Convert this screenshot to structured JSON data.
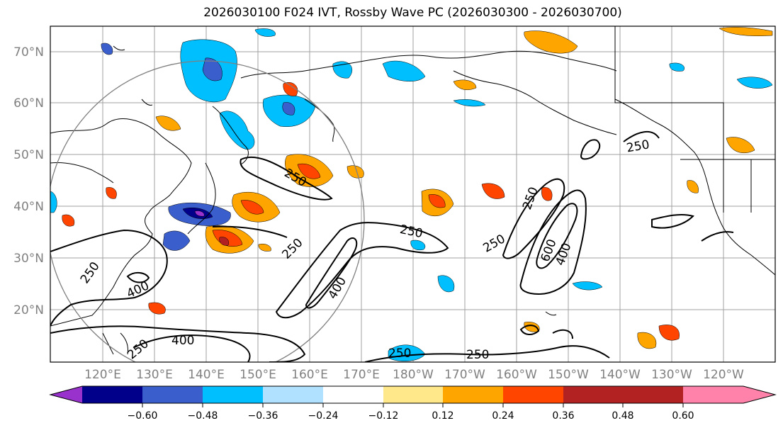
{
  "title": "2026030100 F024 IVT, Rossby Wave PC (2026030300 - 2026030700)",
  "map": {
    "lat_ticks": [
      "20°N",
      "30°N",
      "40°N",
      "50°N",
      "60°N",
      "70°N"
    ],
    "lon_ticks": [
      "120°E",
      "130°E",
      "140°E",
      "150°E",
      "160°E",
      "170°E",
      "180°W",
      "170°W",
      "160°W",
      "150°W",
      "140°W",
      "130°W",
      "120°W"
    ],
    "contour_labels": [
      "250",
      "250",
      "250",
      "250",
      "250",
      "250",
      "250",
      "250",
      "250",
      "400",
      "400",
      "400",
      "400",
      "600"
    ],
    "colors": {
      "axis_label": "#808080",
      "grid": "#a0a0a0",
      "contour": "#000000"
    }
  },
  "colorbar": {
    "colors": [
      "#9932cc",
      "#00008b",
      "#3a5fcd",
      "#00bfff",
      "#b0e2ff",
      "#ffffff",
      "#ffe88a",
      "#ffa500",
      "#ff4500",
      "#b22222",
      "#ff82ab"
    ],
    "tick_labels": [
      "−0.60",
      "−0.48",
      "−0.36",
      "−0.24",
      "−0.12",
      "0.12",
      "0.24",
      "0.36",
      "0.48",
      "0.60"
    ]
  }
}
